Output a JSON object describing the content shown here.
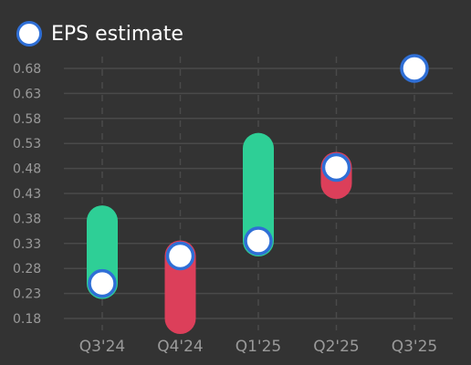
{
  "colors": {
    "background": "#333333",
    "grid": "#4a4a4a",
    "tick_text": "#9a9a9a",
    "beat": "#2ecf96",
    "miss": "#dc3f5a",
    "marker_fill": "#ffffff",
    "marker_stroke": "#2f6fd6",
    "legend_text": "#ffffff"
  },
  "legend": {
    "label": "EPS estimate",
    "icon": "circle-marker-icon"
  },
  "chart_data": {
    "type": "bar",
    "title": "",
    "xlabel": "",
    "ylabel": "",
    "categories": [
      "Q3'24",
      "Q4'24",
      "Q1'25",
      "Q2'25",
      "Q3'25"
    ],
    "y_ticks": [
      "0.18",
      "0.23",
      "0.28",
      "0.33",
      "0.38",
      "0.43",
      "0.48",
      "0.53",
      "0.58",
      "0.63",
      "0.68"
    ],
    "ylim": [
      0.18,
      0.68
    ],
    "grid": true,
    "legend_position": "top-left",
    "series": [
      {
        "name": "EPS estimate",
        "values": [
          0.25,
          0.305,
          0.335,
          0.482,
          0.68
        ]
      }
    ],
    "actual_values": [
      0.375,
      0.18,
      0.52,
      0.45,
      null
    ]
  }
}
